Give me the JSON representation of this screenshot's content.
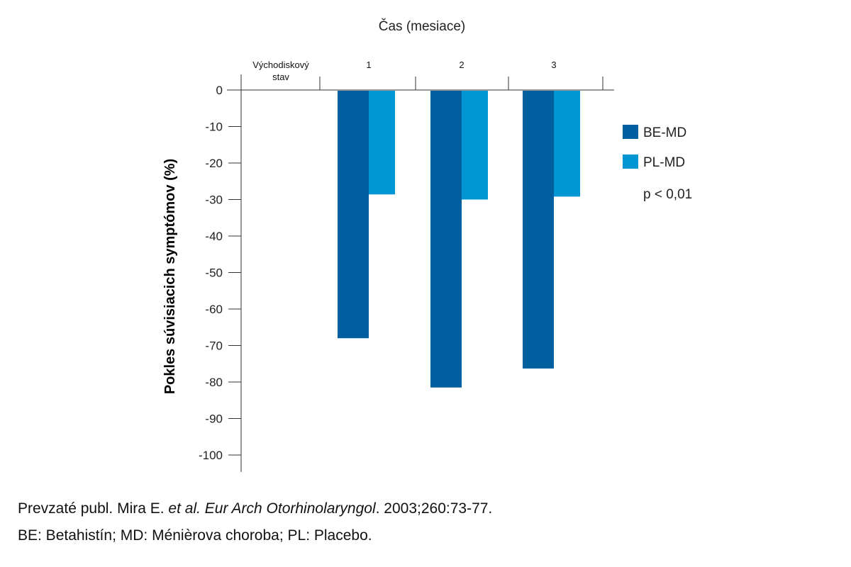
{
  "chart_data": {
    "type": "bar",
    "title": "Čas (mesiace)",
    "xlabel": "Čas (mesiace)",
    "ylabel": "Pokles súvisiacich symptómov (%)",
    "categories": [
      [
        "Východiskový",
        "stav"
      ],
      [
        "1"
      ],
      [
        "2"
      ],
      [
        "3"
      ]
    ],
    "series": [
      {
        "name": "BE-MD",
        "color": "#005f9f",
        "values": [
          0,
          -68,
          -81.5,
          -76.3
        ]
      },
      {
        "name": "PL-MD",
        "color": "#0095d3",
        "values": [
          0,
          -28.6,
          -30,
          -29.2
        ]
      }
    ],
    "ylim": [
      -100,
      0
    ],
    "yticks": [
      "0",
      "-10",
      "-20",
      "-30",
      "-40",
      "-50",
      "-60",
      "-70",
      "-80",
      "-90",
      "-100"
    ],
    "legend_position": "right",
    "annotation": "p < 0,01",
    "grid": false
  },
  "footnote": {
    "line1_a": "Prevzaté publ. Mira E. ",
    "line1_b": "et al. Eur Arch Otorhinolaryngol",
    "line1_c": ". 2003;260:73-77.",
    "line2": "BE: Betahistín; MD: Ménièrova choroba; PL: Placebo."
  }
}
